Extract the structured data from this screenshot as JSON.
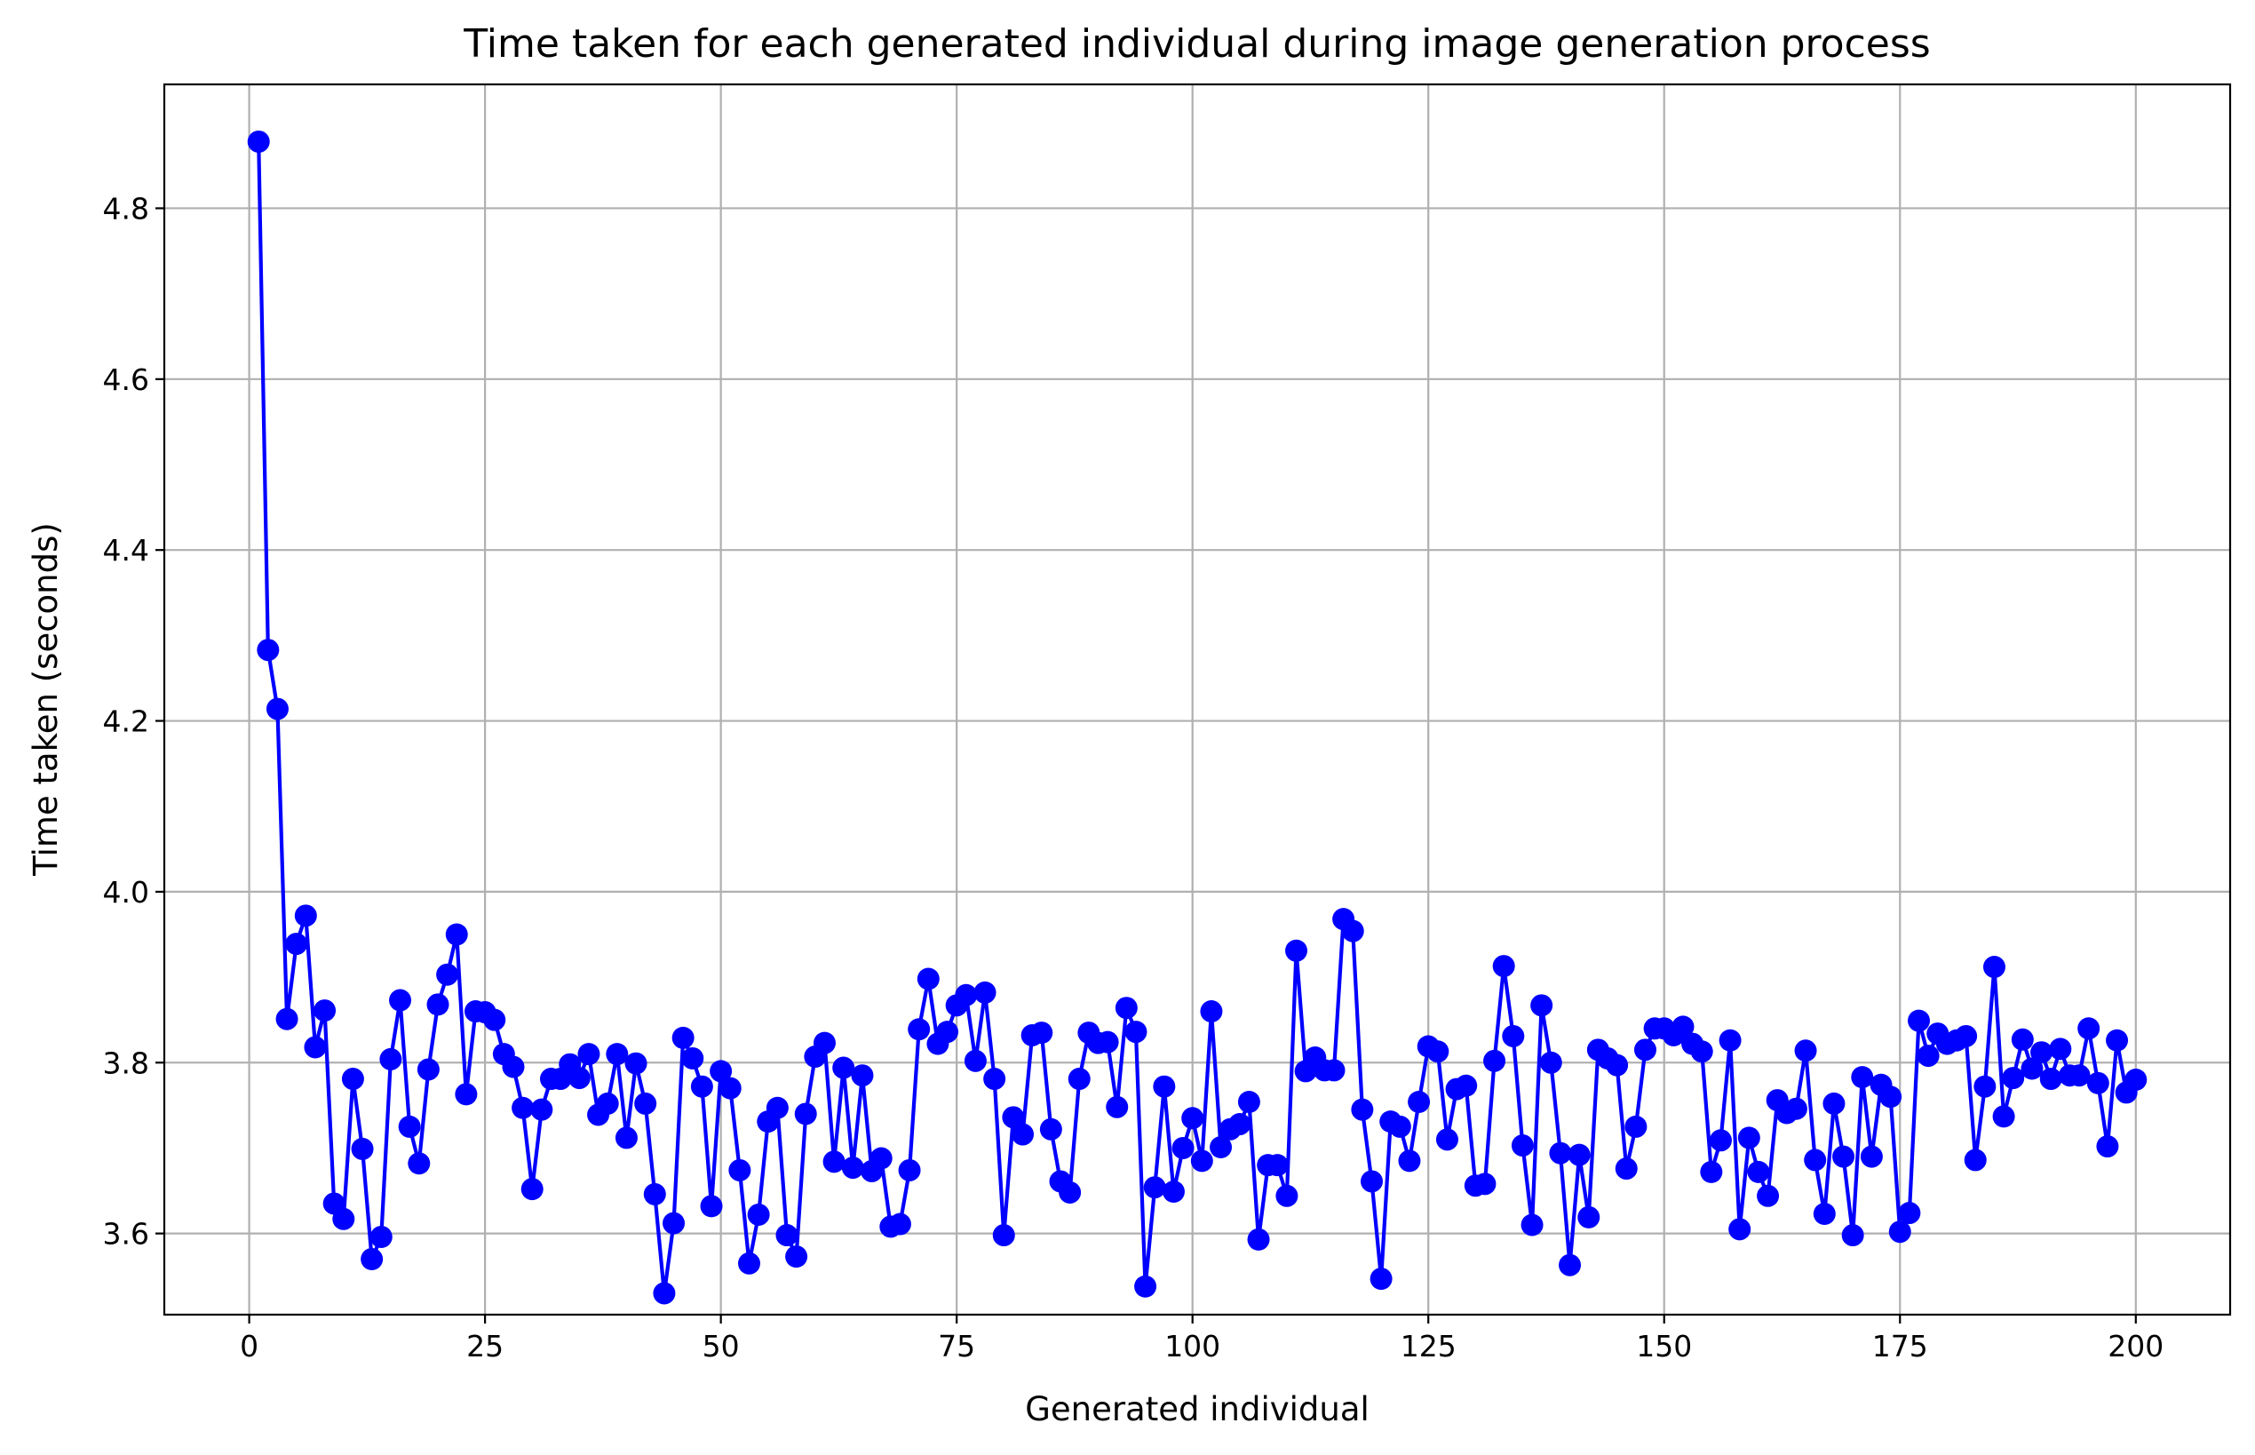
{
  "chart_data": {
    "type": "line",
    "title": "Time taken for each generated individual during image generation process",
    "xlabel": "Generated individual",
    "ylabel": "Time taken (seconds)",
    "xlim": [
      -9,
      210
    ],
    "ylim": [
      3.505,
      4.945
    ],
    "xticks": [
      0,
      25,
      50,
      75,
      100,
      125,
      150,
      175,
      200
    ],
    "xtick_labels": [
      "0",
      "25",
      "50",
      "75",
      "100",
      "125",
      "150",
      "175",
      "200"
    ],
    "yticks": [
      3.6,
      3.8,
      4.0,
      4.2,
      4.4,
      4.6,
      4.8
    ],
    "ytick_labels": [
      "3.6",
      "3.8",
      "4.0",
      "4.2",
      "4.4",
      "4.6",
      "4.8"
    ],
    "grid": true,
    "color": "#0000ff",
    "marker": "circle",
    "x_start": 1,
    "series": [
      {
        "values": [
          4.878,
          4.283,
          4.214,
          3.851,
          3.939,
          3.972,
          3.818,
          3.861,
          3.635,
          3.617,
          3.781,
          3.699,
          3.57,
          3.596,
          3.804,
          3.873,
          3.725,
          3.682,
          3.792,
          3.868,
          3.903,
          3.95,
          3.763,
          3.86,
          3.859,
          3.85,
          3.81,
          3.795,
          3.747,
          3.652,
          3.745,
          3.781,
          3.781,
          3.798,
          3.782,
          3.81,
          3.739,
          3.752,
          3.81,
          3.712,
          3.799,
          3.752,
          3.646,
          3.53,
          3.612,
          3.829,
          3.805,
          3.772,
          3.632,
          3.79,
          3.77,
          3.674,
          3.565,
          3.622,
          3.731,
          3.747,
          3.598,
          3.573,
          3.74,
          3.807,
          3.823,
          3.684,
          3.794,
          3.677,
          3.785,
          3.673,
          3.688,
          3.608,
          3.611,
          3.674,
          3.839,
          3.898,
          3.822,
          3.836,
          3.867,
          3.879,
          3.802,
          3.882,
          3.781,
          3.598,
          3.736,
          3.716,
          3.832,
          3.835,
          3.722,
          3.661,
          3.648,
          3.781,
          3.835,
          3.823,
          3.824,
          3.748,
          3.864,
          3.836,
          3.538,
          3.654,
          3.772,
          3.649,
          3.7,
          3.735,
          3.685,
          3.86,
          3.701,
          3.722,
          3.728,
          3.754,
          3.593,
          3.68,
          3.68,
          3.644,
          3.931,
          3.79,
          3.806,
          3.791,
          3.791,
          3.968,
          3.954,
          3.745,
          3.661,
          3.547,
          3.731,
          3.725,
          3.685,
          3.754,
          3.819,
          3.813,
          3.71,
          3.769,
          3.773,
          3.656,
          3.658,
          3.802,
          3.913,
          3.831,
          3.703,
          3.61,
          3.867,
          3.8,
          3.694,
          3.563,
          3.692,
          3.619,
          3.815,
          3.805,
          3.797,
          3.676,
          3.725,
          3.815,
          3.84,
          3.84,
          3.832,
          3.842,
          3.822,
          3.813,
          3.672,
          3.709,
          3.826,
          3.605,
          3.712,
          3.672,
          3.644,
          3.756,
          3.741,
          3.746,
          3.814,
          3.686,
          3.623,
          3.752,
          3.69,
          3.598,
          3.783,
          3.69,
          3.774,
          3.76,
          3.602,
          3.624,
          3.849,
          3.808,
          3.834,
          3.822,
          3.826,
          3.831,
          3.686,
          3.772,
          3.912,
          3.737,
          3.782,
          3.827,
          3.793,
          3.812,
          3.781,
          3.816,
          3.785,
          3.785,
          3.84,
          3.776,
          3.702,
          3.826,
          3.765,
          3.78
        ]
      }
    ]
  }
}
